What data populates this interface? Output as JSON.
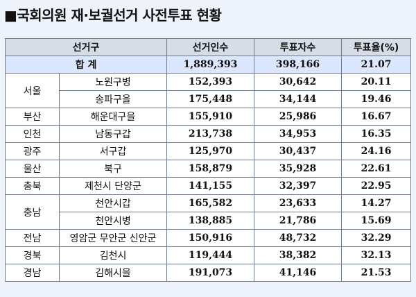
{
  "title": "■국회의원 재·보궐선거 사전투표 현황",
  "headers": {
    "district": "선거구",
    "electors": "선거인수",
    "voters": "투표자수",
    "rate": "투표율(%)"
  },
  "total": {
    "label": "합 계",
    "electors": "1,889,393",
    "voters": "398,166",
    "rate": "21.07"
  },
  "rows": [
    {
      "region": "서울",
      "district": "노원구병",
      "electors": "152,393",
      "voters": "30,642",
      "rate": "20.11"
    },
    {
      "region": "",
      "district": "송파구을",
      "electors": "175,448",
      "voters": "34,144",
      "rate": "19.46"
    },
    {
      "region": "부산",
      "district": "해운대구을",
      "electors": "155,910",
      "voters": "25,986",
      "rate": "16.67"
    },
    {
      "region": "인천",
      "district": "남동구갑",
      "electors": "213,738",
      "voters": "34,953",
      "rate": "16.35"
    },
    {
      "region": "광주",
      "district": "서구갑",
      "electors": "125,970",
      "voters": "30,437",
      "rate": "24.16"
    },
    {
      "region": "울산",
      "district": "북구",
      "electors": "158,879",
      "voters": "35,928",
      "rate": "22.61"
    },
    {
      "region": "충북",
      "district": "제천시 단양군",
      "electors": "141,155",
      "voters": "32,397",
      "rate": "22.95"
    },
    {
      "region": "충남",
      "district": "천안시갑",
      "electors": "165,582",
      "voters": "23,633",
      "rate": "14.27"
    },
    {
      "region": "",
      "district": "천안시병",
      "electors": "138,885",
      "voters": "21,786",
      "rate": "15.69"
    },
    {
      "region": "전남",
      "district": "영암군 무안군 신안군",
      "electors": "150,916",
      "voters": "48,732",
      "rate": "32.29"
    },
    {
      "region": "경북",
      "district": "김천시",
      "electors": "119,444",
      "voters": "38,382",
      "rate": "32.13"
    },
    {
      "region": "경남",
      "district": "김해시을",
      "electors": "191,073",
      "voters": "41,146",
      "rate": "21.53"
    }
  ]
}
